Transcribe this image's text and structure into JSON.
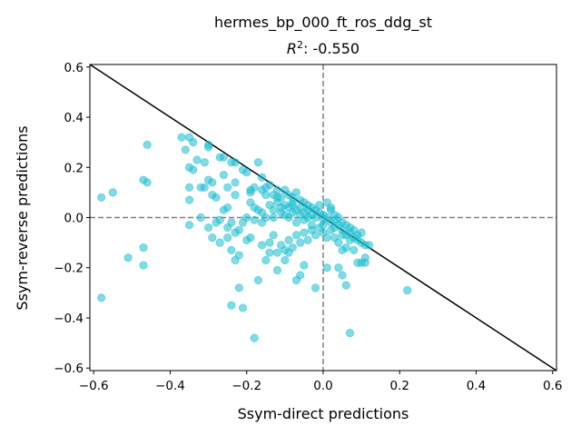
{
  "chart_data": {
    "type": "scatter",
    "title": "hermes_bp_000_ft_ros_ddg_st",
    "subtitle_prefix": "R",
    "subtitle_sup": "2",
    "subtitle_value": ": -0.550",
    "xlabel": "Ssym-direct predictions",
    "ylabel": "Ssym-reverse predictions",
    "xlim": [
      -0.61,
      0.61
    ],
    "ylim": [
      -0.61,
      0.61
    ],
    "xticks": [
      -0.6,
      -0.4,
      -0.2,
      0.0,
      0.2,
      0.4,
      0.6
    ],
    "yticks": [
      -0.6,
      -0.4,
      -0.2,
      0.0,
      0.2,
      0.4,
      0.6
    ],
    "xtick_labels": [
      "−0.6",
      "−0.4",
      "−0.2",
      "0.0",
      "0.2",
      "0.4",
      "0.6"
    ],
    "ytick_labels": [
      "−0.6",
      "−0.4",
      "−0.2",
      "0.0",
      "0.2",
      "0.4",
      "0.6"
    ],
    "grid": false,
    "reference_lines": {
      "identity_line": {
        "from": [
          -0.61,
          0.61
        ],
        "to": [
          0.61,
          -0.61
        ],
        "color": "#000000"
      },
      "zero_lines": {
        "x": 0.0,
        "y": 0.0,
        "color": "#808080",
        "style": "dashed"
      }
    },
    "point_color": "#17becf",
    "point_alpha": 0.55,
    "points": [
      [
        -0.58,
        0.08
      ],
      [
        -0.55,
        0.1
      ],
      [
        -0.58,
        -0.32
      ],
      [
        -0.51,
        -0.16
      ],
      [
        -0.47,
        -0.12
      ],
      [
        -0.47,
        -0.19
      ],
      [
        -0.47,
        0.15
      ],
      [
        -0.46,
        0.14
      ],
      [
        -0.46,
        0.29
      ],
      [
        -0.37,
        0.32
      ],
      [
        -0.36,
        0.27
      ],
      [
        -0.35,
        0.32
      ],
      [
        -0.34,
        0.3
      ],
      [
        -0.35,
        0.2
      ],
      [
        -0.34,
        0.19
      ],
      [
        -0.35,
        0.12
      ],
      [
        -0.35,
        0.07
      ],
      [
        -0.35,
        -0.03
      ],
      [
        -0.33,
        0.23
      ],
      [
        -0.31,
        0.22
      ],
      [
        -0.32,
        0.12
      ],
      [
        -0.31,
        0.12
      ],
      [
        -0.3,
        0.28
      ],
      [
        -0.3,
        0.29
      ],
      [
        -0.3,
        0.15
      ],
      [
        -0.29,
        0.14
      ],
      [
        -0.29,
        0.09
      ],
      [
        -0.28,
        0.08
      ],
      [
        -0.32,
        0.0
      ],
      [
        -0.3,
        -0.04
      ],
      [
        -0.29,
        -0.08
      ],
      [
        -0.27,
        0.24
      ],
      [
        -0.26,
        0.24
      ],
      [
        -0.26,
        0.17
      ],
      [
        -0.25,
        0.12
      ],
      [
        -0.24,
        0.22
      ],
      [
        -0.23,
        0.22
      ],
      [
        -0.23,
        0.14
      ],
      [
        -0.23,
        0.09
      ],
      [
        -0.27,
        -0.01
      ],
      [
        -0.25,
        0.04
      ],
      [
        -0.26,
        0.03
      ],
      [
        -0.24,
        -0.02
      ],
      [
        -0.25,
        -0.04
      ],
      [
        -0.27,
        -0.1
      ],
      [
        -0.25,
        -0.08
      ],
      [
        -0.24,
        -0.13
      ],
      [
        -0.22,
        -0.15
      ],
      [
        -0.22,
        -0.05
      ],
      [
        -0.23,
        -0.06
      ],
      [
        -0.21,
        0.19
      ],
      [
        -0.2,
        0.18
      ],
      [
        -0.19,
        0.11
      ],
      [
        -0.18,
        0.12
      ],
      [
        -0.19,
        0.06
      ],
      [
        -0.18,
        0.04
      ],
      [
        -0.2,
        0.0
      ],
      [
        -0.18,
        -0.01
      ],
      [
        -0.17,
        0.22
      ],
      [
        -0.16,
        0.16
      ],
      [
        -0.16,
        0.11
      ],
      [
        -0.15,
        0.09
      ],
      [
        -0.17,
        0.03
      ],
      [
        -0.16,
        -0.02
      ],
      [
        -0.15,
        0.0
      ],
      [
        -0.14,
        0.05
      ],
      [
        -0.14,
        0.13
      ],
      [
        -0.13,
        0.09
      ],
      [
        -0.13,
        0.03
      ],
      [
        -0.12,
        0.11
      ],
      [
        -0.12,
        0.06
      ],
      [
        -0.11,
        0.08
      ],
      [
        -0.11,
        0.02
      ],
      [
        -0.1,
        0.11
      ],
      [
        -0.1,
        0.05
      ],
      [
        -0.1,
        0.01
      ],
      [
        -0.09,
        0.09
      ],
      [
        -0.09,
        0.04
      ],
      [
        -0.08,
        0.08
      ],
      [
        -0.08,
        0.06
      ],
      [
        -0.08,
        0.02
      ],
      [
        -0.07,
        0.1
      ],
      [
        -0.07,
        0.03
      ],
      [
        -0.06,
        0.07
      ],
      [
        -0.06,
        0.01
      ],
      [
        -0.05,
        0.06
      ],
      [
        -0.05,
        0.02
      ],
      [
        -0.04,
        0.05
      ],
      [
        -0.04,
        0.0
      ],
      [
        -0.03,
        0.04
      ],
      [
        -0.03,
        0.01
      ],
      [
        -0.02,
        0.03
      ],
      [
        -0.02,
        0.0
      ],
      [
        -0.01,
        0.02
      ],
      [
        0.0,
        0.01
      ],
      [
        0.0,
        -0.01
      ],
      [
        0.01,
        0.06
      ],
      [
        0.01,
        0.0
      ],
      [
        0.02,
        -0.02
      ],
      [
        0.02,
        0.03
      ],
      [
        0.03,
        -0.01
      ],
      [
        0.03,
        0.01
      ],
      [
        0.04,
        -0.03
      ],
      [
        0.04,
        0.0
      ],
      [
        0.05,
        -0.02
      ],
      [
        0.05,
        -0.05
      ],
      [
        0.06,
        -0.03
      ],
      [
        0.06,
        -0.07
      ],
      [
        0.07,
        -0.04
      ],
      [
        0.07,
        -0.06
      ],
      [
        0.08,
        -0.05
      ],
      [
        0.08,
        -0.08
      ],
      [
        0.09,
        -0.07
      ],
      [
        0.09,
        -0.09
      ],
      [
        0.1,
        -0.06
      ],
      [
        0.1,
        -0.1
      ],
      [
        0.11,
        -0.11
      ],
      [
        0.11,
        -0.16
      ],
      [
        0.1,
        -0.18
      ],
      [
        0.08,
        -0.13
      ],
      [
        0.06,
        -0.12
      ],
      [
        0.05,
        -0.13
      ],
      [
        0.04,
        -0.1
      ],
      [
        0.03,
        -0.08
      ],
      [
        0.02,
        -0.05
      ],
      [
        0.01,
        -0.08
      ],
      [
        0.0,
        -0.06
      ],
      [
        -0.01,
        -0.04
      ],
      [
        -0.02,
        -0.07
      ],
      [
        -0.03,
        -0.05
      ],
      [
        -0.04,
        -0.09
      ],
      [
        -0.05,
        -0.06
      ],
      [
        -0.06,
        -0.1
      ],
      [
        -0.07,
        -0.07
      ],
      [
        -0.08,
        -0.12
      ],
      [
        -0.09,
        -0.09
      ],
      [
        -0.1,
        -0.13
      ],
      [
        -0.11,
        -0.11
      ],
      [
        -0.12,
        -0.14
      ],
      [
        -0.13,
        -0.07
      ],
      [
        -0.14,
        -0.14
      ],
      [
        -0.15,
        -0.17
      ],
      [
        -0.16,
        -0.11
      ],
      [
        -0.17,
        -0.25
      ],
      [
        -0.18,
        -0.48
      ],
      [
        -0.19,
        -0.08
      ],
      [
        -0.2,
        -0.09
      ],
      [
        -0.21,
        -0.36
      ],
      [
        -0.22,
        -0.28
      ],
      [
        -0.23,
        -0.17
      ],
      [
        -0.24,
        -0.35
      ],
      [
        -0.14,
        -0.1
      ],
      [
        -0.12,
        -0.21
      ],
      [
        -0.1,
        -0.17
      ],
      [
        -0.09,
        -0.14
      ],
      [
        -0.07,
        -0.25
      ],
      [
        -0.06,
        -0.23
      ],
      [
        -0.05,
        -0.19
      ],
      [
        -0.02,
        -0.28
      ],
      [
        0.01,
        -0.2
      ],
      [
        0.04,
        -0.2
      ],
      [
        0.05,
        -0.23
      ],
      [
        0.06,
        -0.27
      ],
      [
        0.07,
        -0.46
      ],
      [
        0.09,
        -0.18
      ],
      [
        0.11,
        -0.18
      ],
      [
        0.22,
        -0.29
      ],
      [
        0.12,
        -0.11
      ],
      [
        0.02,
        0.04
      ],
      [
        -0.01,
        0.05
      ],
      [
        -0.04,
        0.03
      ],
      [
        -0.06,
        0.04
      ],
      [
        -0.08,
        0.05
      ],
      [
        -0.12,
        0.08
      ],
      [
        -0.15,
        0.12
      ],
      [
        -0.09,
        0.0
      ],
      [
        -0.07,
        -0.02
      ],
      [
        -0.05,
        -0.01
      ],
      [
        -0.03,
        -0.03
      ],
      [
        0.0,
        -0.03
      ],
      [
        0.03,
        -0.04
      ],
      [
        0.05,
        -0.07
      ],
      [
        0.07,
        -0.09
      ],
      [
        -0.11,
        0.04
      ],
      [
        -0.13,
        0.0
      ],
      [
        -0.16,
        0.02
      ],
      [
        -0.19,
        0.1
      ],
      [
        -0.21,
        -0.02
      ],
      [
        -0.28,
        -0.02
      ]
    ]
  }
}
